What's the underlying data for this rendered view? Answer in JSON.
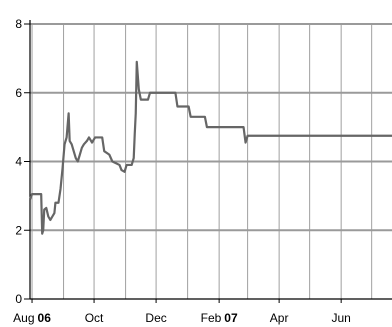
{
  "chart_data": {
    "type": "line",
    "title": "",
    "xlabel": "",
    "ylabel": "",
    "x_tick_labels": [
      {
        "date": "2006-08-01",
        "label": "Aug",
        "bold_suffix": "06"
      },
      {
        "date": "2006-10-01",
        "label": "Oct",
        "bold_suffix": ""
      },
      {
        "date": "2006-12-01",
        "label": "Dec",
        "bold_suffix": ""
      },
      {
        "date": "2007-02-01",
        "label": "Feb",
        "bold_suffix": "07"
      },
      {
        "date": "2007-04-01",
        "label": "Apr",
        "bold_suffix": ""
      },
      {
        "date": "2007-06-01",
        "label": "Jun",
        "bold_suffix": ""
      }
    ],
    "y_ticks": [
      0,
      2,
      4,
      6,
      8
    ],
    "ylim": [
      0,
      8
    ],
    "xlim": [
      "2006-07-30",
      "2007-07-21"
    ],
    "grid": true,
    "legend": "none",
    "series": [
      {
        "color": "#666666",
        "points": [
          [
            "2006-07-30",
            2.9
          ],
          [
            "2006-08-01",
            3.05
          ],
          [
            "2006-08-05",
            3.05
          ],
          [
            "2006-08-10",
            3.05
          ],
          [
            "2006-08-11",
            1.9
          ],
          [
            "2006-08-12",
            2.0
          ],
          [
            "2006-08-13",
            2.6
          ],
          [
            "2006-08-15",
            2.65
          ],
          [
            "2006-08-17",
            2.4
          ],
          [
            "2006-08-19",
            2.3
          ],
          [
            "2006-08-21",
            2.4
          ],
          [
            "2006-08-23",
            2.5
          ],
          [
            "2006-08-24",
            2.8
          ],
          [
            "2006-08-27",
            2.8
          ],
          [
            "2006-08-29",
            3.2
          ],
          [
            "2006-08-31",
            3.8
          ],
          [
            "2006-09-02",
            4.5
          ],
          [
            "2006-09-04",
            4.7
          ],
          [
            "2006-09-06",
            5.4
          ],
          [
            "2006-09-07",
            4.6
          ],
          [
            "2006-09-09",
            4.5
          ],
          [
            "2006-09-11",
            4.3
          ],
          [
            "2006-09-13",
            4.1
          ],
          [
            "2006-09-15",
            4.0
          ],
          [
            "2006-09-17",
            4.2
          ],
          [
            "2006-09-19",
            4.4
          ],
          [
            "2006-09-21",
            4.5
          ],
          [
            "2006-09-24",
            4.6
          ],
          [
            "2006-09-26",
            4.7
          ],
          [
            "2006-09-29",
            4.55
          ],
          [
            "2006-10-02",
            4.7
          ],
          [
            "2006-10-09",
            4.7
          ],
          [
            "2006-10-11",
            4.3
          ],
          [
            "2006-10-16",
            4.2
          ],
          [
            "2006-10-19",
            4.0
          ],
          [
            "2006-10-26",
            3.9
          ],
          [
            "2006-10-28",
            3.75
          ],
          [
            "2006-10-31",
            3.7
          ],
          [
            "2006-11-02",
            3.9
          ],
          [
            "2006-11-07",
            3.9
          ],
          [
            "2006-11-09",
            4.1
          ],
          [
            "2006-11-10",
            4.8
          ],
          [
            "2006-11-11",
            5.4
          ],
          [
            "2006-11-12",
            6.9
          ],
          [
            "2006-11-14",
            6.1
          ],
          [
            "2006-11-16",
            5.8
          ],
          [
            "2006-11-23",
            5.8
          ],
          [
            "2006-11-25",
            6.0
          ],
          [
            "2006-12-20",
            6.0
          ],
          [
            "2006-12-22",
            5.6
          ],
          [
            "2007-01-02",
            5.6
          ],
          [
            "2007-01-04",
            5.3
          ],
          [
            "2007-01-18",
            5.3
          ],
          [
            "2007-01-20",
            5.0
          ],
          [
            "2007-02-25",
            5.0
          ],
          [
            "2007-02-27",
            4.55
          ],
          [
            "2007-03-01",
            4.75
          ],
          [
            "2007-07-21",
            4.75
          ]
        ]
      }
    ]
  }
}
